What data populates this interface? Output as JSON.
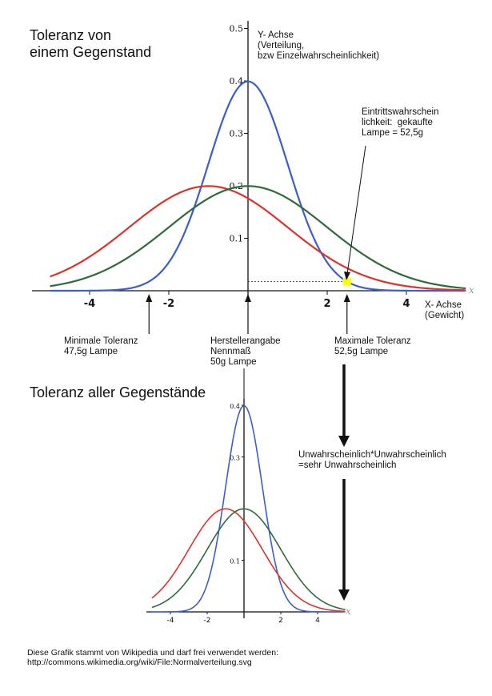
{
  "texts": {
    "title_top": "Toleranz von\neinem Gegenstand",
    "title_bottom": "Toleranz aller Gegenstände",
    "y_axis_label": "Y- Achse\n(Verteilung,\nbzw Einzelwahrscheinlichkeit)",
    "x_axis_label": "X- Achse\n(Gewicht)",
    "eintritt": "Eintrittswahrschein\nlichkeit:  gekaufte\nLampe = 52,5g",
    "min_toleranz": "Minimale Toleranz\n47,5g Lampe",
    "hersteller": "Herstellerangabe\nNennmaß\n50g Lampe",
    "max_toleranz": "Maximale Toleranz\n52,5g Lampe",
    "unwahrscheinlich": "Unwahrscheinlich*Unwahrscheinlich\n=sehr Unwahrscheinlich",
    "source": "Diese Grafik stammt von Wikipedia und darf frei verwendet werden:\nhttp://commons.wikimedia.org/wiki/File:Normalverteilung.svg"
  },
  "chart_data": [
    {
      "type": "line",
      "title": "Toleranz von einem Gegenstand",
      "xlabel": "X- Achse (Gewicht)",
      "ylabel": "Y- Achse (Verteilung, bzw Einzelwahrscheinlichkeit)",
      "x_axis_symbol": "x",
      "xlim": [
        -5.0,
        5.5
      ],
      "ylim": [
        0,
        0.5
      ],
      "x_ticks": [
        -4,
        -2,
        2,
        4
      ],
      "y_ticks": [
        0.1,
        0.2,
        0.3,
        0.4,
        0.5
      ],
      "series": [
        {
          "color": "#3b5fc9",
          "mean": 0,
          "sd": 1
        },
        {
          "color": "#d9342b",
          "mean": -1,
          "sd": 2
        },
        {
          "color": "#2e6b3a",
          "mean": 0,
          "sd": 2
        }
      ],
      "highlight": {
        "x": 2.5,
        "y": 0.0175,
        "color": "#ffff00"
      }
    },
    {
      "type": "line",
      "title": "Toleranz aller Gegenstände",
      "x_axis_symbol": "x",
      "xlim": [
        -5.0,
        5.5
      ],
      "ylim": [
        0,
        0.4
      ],
      "x_ticks": [
        -4,
        -2,
        2,
        4
      ],
      "y_ticks": [
        0.1,
        0.3,
        0.4
      ],
      "series": [
        {
          "color": "#3b5fc9",
          "mean": 0,
          "sd": 1
        },
        {
          "color": "#d9342b",
          "mean": -1,
          "sd": 2
        },
        {
          "color": "#2e6b3a",
          "mean": 0,
          "sd": 2
        }
      ]
    }
  ]
}
